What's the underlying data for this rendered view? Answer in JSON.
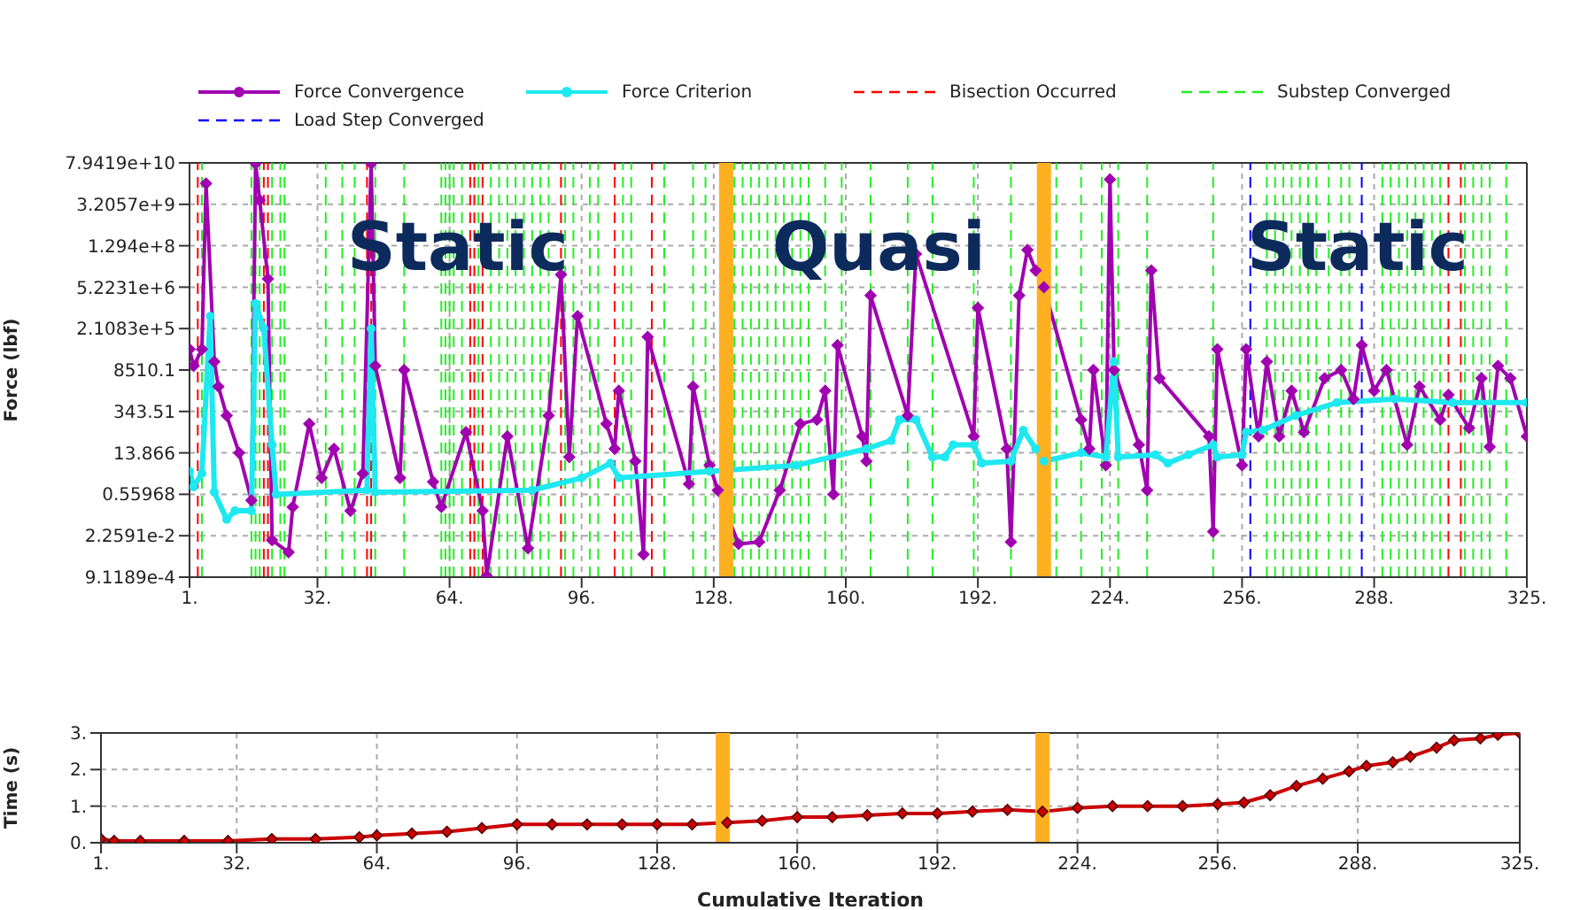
{
  "chart_data": [
    {
      "type": "line",
      "ylabel": "Force (lbf)",
      "log": "y",
      "grid": true,
      "legend": "top",
      "xlim": [
        1,
        325
      ],
      "xticks": [
        {
          "value": 1,
          "label": "1."
        },
        {
          "value": 32,
          "label": "32."
        },
        {
          "value": 64,
          "label": "64."
        },
        {
          "value": 96,
          "label": "96."
        },
        {
          "value": 128,
          "label": "128."
        },
        {
          "value": 160,
          "label": "160."
        },
        {
          "value": 192,
          "label": "192."
        },
        {
          "value": 224,
          "label": "224."
        },
        {
          "value": 256,
          "label": "256."
        },
        {
          "value": 288,
          "label": "288."
        },
        {
          "value": 325,
          "label": "325."
        }
      ],
      "ylim": [
        0.00091189,
        79419000000
      ],
      "yticks": [
        {
          "value": 0.00091189,
          "label": "9.1189e-4"
        },
        {
          "value": 0.022591,
          "label": "2.2591e-2"
        },
        0.55968,
        13.866,
        343.51,
        8510.1,
        {
          "value": 210830,
          "label": "2.1083e+5"
        },
        {
          "value": 5223100,
          "label": "5.2231e+6"
        },
        {
          "value": 129400000,
          "label": "1.294e+8"
        },
        {
          "value": 3205700000,
          "label": "3.2057e+9"
        },
        {
          "value": 79419000000,
          "label": "7.9419e+10"
        }
      ],
      "series": [
        {
          "name": "Force Convergence",
          "color": "#a000b0",
          "marker": "diamond",
          "x": [
            1,
            2,
            4,
            5,
            7,
            8,
            10,
            13,
            16,
            17,
            18,
            20,
            21,
            25,
            26,
            30,
            33,
            36,
            40,
            43,
            45,
            46,
            52,
            53,
            60,
            62,
            68,
            72,
            73,
            78,
            83,
            88,
            91,
            93,
            95,
            102,
            104,
            105,
            109,
            111,
            112,
            122,
            123,
            127,
            129,
            134,
            139,
            144,
            149,
            153,
            155,
            157,
            158,
            164,
            165,
            166,
            175,
            177,
            191,
            192,
            199,
            200,
            202,
            204,
            206,
            208,
            217,
            219,
            220,
            223,
            224,
            225,
            231,
            233,
            234,
            236,
            248,
            249,
            250,
            256,
            257,
            260,
            262,
            265,
            268,
            271,
            276,
            280,
            283,
            285,
            288,
            291,
            296,
            299,
            304,
            306,
            311,
            314,
            316,
            318,
            321,
            325
          ],
          "values": [
            42400,
            11700,
            42400,
            16000000000,
            16200,
            2360,
            250,
            13.9,
            0.35,
            75000000000,
            4400000000,
            9900000,
            0.016,
            0.0063,
            0.21,
            131,
            2.0,
            19,
            0.155,
            2.8,
            75000000000,
            11700,
            2.0,
            8510,
            1.47,
            0.21,
            69,
            0.155,
            0.001,
            50,
            0.0086,
            250,
            13700000,
            10,
            552000,
            131,
            19,
            1710,
            7.3,
            0.0053,
            111000,
            1.25,
            2360,
            5.3,
            0.77,
            0.012,
            0.014,
            0.77,
            131,
            181,
            1710,
            0.56,
            58400,
            50,
            7.3,
            2750000,
            250,
            68000000,
            50,
            1050000,
            19,
            0.014,
            2750000,
            94000000,
            19000000,
            5200000,
            181,
            19,
            8510,
            5.3,
            22000000000,
            8510,
            26,
            0.77,
            19000000,
            4480,
            50,
            0.031,
            42400,
            5.3,
            42400,
            50,
            16200,
            50,
            1710,
            69,
            4480,
            8510,
            900,
            58400,
            1710,
            8510,
            26,
            2360,
            181,
            1240,
            95,
            4480,
            22,
            11700,
            4480,
            50
          ]
        },
        {
          "name": "Force Criterion",
          "color": "#1ee8f0",
          "marker": "circle",
          "x": [
            1,
            2,
            4,
            6,
            7,
            10,
            12,
            16,
            17,
            19,
            21,
            22,
            44,
            45,
            46,
            84,
            96,
            103,
            105,
            127,
            148,
            165,
            171,
            173,
            177,
            181,
            184,
            186,
            191,
            193,
            200,
            203,
            206,
            208,
            217,
            223,
            225,
            226,
            235,
            238,
            243,
            249,
            250,
            256,
            257,
            261,
            269,
            279,
            293,
            307,
            325
          ],
          "values": [
            3.3,
            1.0,
            2.8,
            552000,
            0.66,
            0.08,
            0.155,
            0.155,
            1450000,
            210000,
            26,
            0.56,
            0.77,
            210000,
            0.66,
            0.77,
            2.0,
            6.2,
            2.0,
            3.3,
            5.3,
            19,
            36,
            181,
            181,
            10,
            10,
            26,
            26,
            6.2,
            7.3,
            80,
            19,
            7.3,
            13.9,
            10,
            16200,
            10,
            12,
            6.2,
            12,
            26,
            10,
            12,
            69,
            80,
            250,
            680,
            900,
            680,
            680
          ]
        }
      ],
      "ref_lines": [
        {
          "axis": "x",
          "value": 3,
          "label": "Bisection Occurred",
          "color": "#ff0000",
          "line_style": "dashed"
        },
        {
          "axis": "x",
          "value": 19,
          "color": "#ff0000",
          "line_style": "dashed"
        },
        {
          "axis": "x",
          "value": 20,
          "color": "#ff0000",
          "line_style": "dashed"
        },
        {
          "axis": "x",
          "value": 44,
          "color": "#ff0000",
          "line_style": "dashed"
        },
        {
          "axis": "x",
          "value": 45,
          "color": "#ff0000",
          "line_style": "dashed"
        },
        {
          "axis": "x",
          "value": 69,
          "color": "#ff0000",
          "line_style": "dashed"
        },
        {
          "axis": "x",
          "value": 70,
          "color": "#ff0000",
          "line_style": "dashed"
        },
        {
          "axis": "x",
          "value": 72,
          "color": "#ff0000",
          "line_style": "dashed"
        },
        {
          "axis": "x",
          "value": 91,
          "color": "#ff0000",
          "line_style": "dashed"
        },
        {
          "axis": "x",
          "value": 104,
          "color": "#ff0000",
          "line_style": "dashed"
        },
        {
          "axis": "x",
          "value": 113,
          "color": "#ff0000",
          "line_style": "dashed"
        },
        {
          "axis": "x",
          "value": 306,
          "color": "#ff0000",
          "line_style": "dashed"
        },
        {
          "axis": "x",
          "value": 309,
          "color": "#ff0000",
          "line_style": "dashed"
        },
        {
          "axis": "x",
          "value": 4,
          "label": "Substep Converged",
          "color": "#22ee22",
          "line_style": "dashed"
        },
        {
          "axis": "x",
          "value": 16,
          "color": "#22ee22",
          "line_style": "dashed"
        },
        {
          "axis": "x",
          "value": 17,
          "color": "#22ee22",
          "line_style": "dashed"
        },
        {
          "axis": "x",
          "value": 18,
          "color": "#22ee22",
          "line_style": "dashed"
        },
        {
          "axis": "x",
          "value": 21,
          "color": "#22ee22",
          "line_style": "dashed"
        },
        {
          "axis": "x",
          "value": 23,
          "color": "#22ee22",
          "line_style": "dashed"
        },
        {
          "axis": "x",
          "value": 24,
          "color": "#22ee22",
          "line_style": "dashed"
        },
        {
          "axis": "x",
          "value": 34,
          "color": "#22ee22",
          "line_style": "dashed"
        },
        {
          "axis": "x",
          "value": 38,
          "color": "#22ee22",
          "line_style": "dashed"
        },
        {
          "axis": "x",
          "value": 41,
          "color": "#22ee22",
          "line_style": "dashed"
        },
        {
          "axis": "x",
          "value": 46,
          "color": "#22ee22",
          "line_style": "dashed"
        },
        {
          "axis": "x",
          "value": 53,
          "color": "#22ee22",
          "line_style": "dashed"
        },
        {
          "axis": "x",
          "value": 62,
          "color": "#22ee22",
          "line_style": "dashed"
        },
        {
          "axis": "x",
          "value": 63,
          "color": "#22ee22",
          "line_style": "dashed"
        },
        {
          "axis": "x",
          "value": 64,
          "color": "#22ee22",
          "line_style": "dashed"
        },
        {
          "axis": "x",
          "value": 65,
          "color": "#22ee22",
          "line_style": "dashed"
        },
        {
          "axis": "x",
          "value": 67,
          "color": "#22ee22",
          "line_style": "dashed"
        },
        {
          "axis": "x",
          "value": 71,
          "color": "#22ee22",
          "line_style": "dashed"
        },
        {
          "axis": "x",
          "value": 74,
          "color": "#22ee22",
          "line_style": "dashed"
        },
        {
          "axis": "x",
          "value": 76,
          "color": "#22ee22",
          "line_style": "dashed"
        },
        {
          "axis": "x",
          "value": 78,
          "color": "#22ee22",
          "line_style": "dashed"
        },
        {
          "axis": "x",
          "value": 80,
          "color": "#22ee22",
          "line_style": "dashed"
        },
        {
          "axis": "x",
          "value": 82,
          "color": "#22ee22",
          "line_style": "dashed"
        },
        {
          "axis": "x",
          "value": 84,
          "color": "#22ee22",
          "line_style": "dashed"
        },
        {
          "axis": "x",
          "value": 86,
          "color": "#22ee22",
          "line_style": "dashed"
        },
        {
          "axis": "x",
          "value": 88,
          "color": "#22ee22",
          "line_style": "dashed"
        },
        {
          "axis": "x",
          "value": 92,
          "color": "#22ee22",
          "line_style": "dashed"
        },
        {
          "axis": "x",
          "value": 94,
          "color": "#22ee22",
          "line_style": "dashed"
        },
        {
          "axis": "x",
          "value": 98,
          "color": "#22ee22",
          "line_style": "dashed"
        },
        {
          "axis": "x",
          "value": 100,
          "color": "#22ee22",
          "line_style": "dashed"
        },
        {
          "axis": "x",
          "value": 106,
          "color": "#22ee22",
          "line_style": "dashed"
        },
        {
          "axis": "x",
          "value": 108,
          "color": "#22ee22",
          "line_style": "dashed"
        },
        {
          "axis": "x",
          "value": 116,
          "color": "#22ee22",
          "line_style": "dashed"
        },
        {
          "axis": "x",
          "value": 123,
          "color": "#22ee22",
          "line_style": "dashed"
        },
        {
          "axis": "x",
          "value": 126,
          "color": "#22ee22",
          "line_style": "dashed"
        },
        {
          "axis": "x",
          "value": 133,
          "color": "#22ee22",
          "line_style": "dashed"
        },
        {
          "axis": "x",
          "value": 135,
          "color": "#22ee22",
          "line_style": "dashed"
        },
        {
          "axis": "x",
          "value": 137,
          "color": "#22ee22",
          "line_style": "dashed"
        },
        {
          "axis": "x",
          "value": 139,
          "color": "#22ee22",
          "line_style": "dashed"
        },
        {
          "axis": "x",
          "value": 141,
          "color": "#22ee22",
          "line_style": "dashed"
        },
        {
          "axis": "x",
          "value": 143,
          "color": "#22ee22",
          "line_style": "dashed"
        },
        {
          "axis": "x",
          "value": 145,
          "color": "#22ee22",
          "line_style": "dashed"
        },
        {
          "axis": "x",
          "value": 147,
          "color": "#22ee22",
          "line_style": "dashed"
        },
        {
          "axis": "x",
          "value": 149,
          "color": "#22ee22",
          "line_style": "dashed"
        },
        {
          "axis": "x",
          "value": 151,
          "color": "#22ee22",
          "line_style": "dashed"
        },
        {
          "axis": "x",
          "value": 155,
          "color": "#22ee22",
          "line_style": "dashed"
        },
        {
          "axis": "x",
          "value": 159,
          "color": "#22ee22",
          "line_style": "dashed"
        },
        {
          "axis": "x",
          "value": 166,
          "color": "#22ee22",
          "line_style": "dashed"
        },
        {
          "axis": "x",
          "value": 175,
          "color": "#22ee22",
          "line_style": "dashed"
        },
        {
          "axis": "x",
          "value": 181,
          "color": "#22ee22",
          "line_style": "dashed"
        },
        {
          "axis": "x",
          "value": 191,
          "color": "#22ee22",
          "line_style": "dashed"
        },
        {
          "axis": "x",
          "value": 200,
          "color": "#22ee22",
          "line_style": "dashed"
        },
        {
          "axis": "x",
          "value": 211,
          "color": "#22ee22",
          "line_style": "dashed"
        },
        {
          "axis": "x",
          "value": 217,
          "color": "#22ee22",
          "line_style": "dashed"
        },
        {
          "axis": "x",
          "value": 222,
          "color": "#22ee22",
          "line_style": "dashed"
        },
        {
          "axis": "x",
          "value": 226,
          "color": "#22ee22",
          "line_style": "dashed"
        },
        {
          "axis": "x",
          "value": 233,
          "color": "#22ee22",
          "line_style": "dashed"
        },
        {
          "axis": "x",
          "value": 249,
          "color": "#22ee22",
          "line_style": "dashed"
        },
        {
          "axis": "x",
          "value": 262,
          "color": "#22ee22",
          "line_style": "dashed"
        },
        {
          "axis": "x",
          "value": 264,
          "color": "#22ee22",
          "line_style": "dashed"
        },
        {
          "axis": "x",
          "value": 266,
          "color": "#22ee22",
          "line_style": "dashed"
        },
        {
          "axis": "x",
          "value": 268,
          "color": "#22ee22",
          "line_style": "dashed"
        },
        {
          "axis": "x",
          "value": 270,
          "color": "#22ee22",
          "line_style": "dashed"
        },
        {
          "axis": "x",
          "value": 272,
          "color": "#22ee22",
          "line_style": "dashed"
        },
        {
          "axis": "x",
          "value": 274,
          "color": "#22ee22",
          "line_style": "dashed"
        },
        {
          "axis": "x",
          "value": 277,
          "color": "#22ee22",
          "line_style": "dashed"
        },
        {
          "axis": "x",
          "value": 280,
          "color": "#22ee22",
          "line_style": "dashed"
        },
        {
          "axis": "x",
          "value": 282,
          "color": "#22ee22",
          "line_style": "dashed"
        },
        {
          "axis": "x",
          "value": 290,
          "color": "#22ee22",
          "line_style": "dashed"
        },
        {
          "axis": "x",
          "value": 292,
          "color": "#22ee22",
          "line_style": "dashed"
        },
        {
          "axis": "x",
          "value": 294,
          "color": "#22ee22",
          "line_style": "dashed"
        },
        {
          "axis": "x",
          "value": 296,
          "color": "#22ee22",
          "line_style": "dashed"
        },
        {
          "axis": "x",
          "value": 298,
          "color": "#22ee22",
          "line_style": "dashed"
        },
        {
          "axis": "x",
          "value": 300,
          "color": "#22ee22",
          "line_style": "dashed"
        },
        {
          "axis": "x",
          "value": 302,
          "color": "#22ee22",
          "line_style": "dashed"
        },
        {
          "axis": "x",
          "value": 304,
          "color": "#22ee22",
          "line_style": "dashed"
        },
        {
          "axis": "x",
          "value": 310,
          "color": "#22ee22",
          "line_style": "dashed"
        },
        {
          "axis": "x",
          "value": 312,
          "color": "#22ee22",
          "line_style": "dashed"
        },
        {
          "axis": "x",
          "value": 314,
          "color": "#22ee22",
          "line_style": "dashed"
        },
        {
          "axis": "x",
          "value": 316,
          "color": "#22ee22",
          "line_style": "dashed"
        },
        {
          "axis": "x",
          "value": 320,
          "color": "#22ee22",
          "line_style": "dashed"
        },
        {
          "axis": "x",
          "value": 258,
          "label": "Load Step Converged",
          "color": "#0000ff",
          "line_style": "dashed"
        },
        {
          "axis": "x",
          "value": 285,
          "color": "#0000ff",
          "line_style": "dashed"
        },
        {
          "axis": "x",
          "value": 131,
          "color": "#ffb020",
          "line_style": "solid"
        },
        {
          "axis": "x",
          "value": 208,
          "color": "#ffb020",
          "line_style": "solid"
        }
      ],
      "annotations": [
        {
          "text": "Static",
          "x": 66,
          "y": 129400000
        },
        {
          "text": "Quasi",
          "x": 168,
          "y": 129400000
        },
        {
          "text": "Static",
          "x": 284,
          "y": 129400000
        }
      ]
    },
    {
      "type": "line",
      "xlabel": "Cumulative Iteration",
      "ylabel": "Time (s)",
      "grid": true,
      "xlim": [
        1,
        325
      ],
      "xticks": [
        {
          "value": 1,
          "label": "1."
        },
        {
          "value": 32,
          "label": "32."
        },
        {
          "value": 64,
          "label": "64."
        },
        {
          "value": 96,
          "label": "96."
        },
        {
          "value": 128,
          "label": "128."
        },
        {
          "value": 160,
          "label": "160."
        },
        {
          "value": 192,
          "label": "192."
        },
        {
          "value": 224,
          "label": "224."
        },
        {
          "value": 256,
          "label": "256."
        },
        {
          "value": 288,
          "label": "288."
        },
        {
          "value": 325,
          "label": "325."
        }
      ],
      "ylim": [
        0,
        3
      ],
      "yticks": [
        {
          "value": 0,
          "label": "0."
        },
        {
          "value": 1,
          "label": "1."
        },
        {
          "value": 2,
          "label": "2."
        },
        {
          "value": 3,
          "label": "3."
        }
      ],
      "series": [
        {
          "color": "#cc0000",
          "marker": "diamond",
          "x": [
            1,
            4,
            10,
            20,
            30,
            40,
            50,
            60,
            64,
            72,
            80,
            88,
            96,
            104,
            112,
            120,
            128,
            136,
            144,
            152,
            160,
            168,
            176,
            184,
            192,
            200,
            208,
            216,
            224,
            232,
            240,
            248,
            256,
            262,
            268,
            274,
            280,
            286,
            290,
            296,
            300,
            306,
            310,
            316,
            320,
            325
          ],
          "values": [
            0.1,
            0.05,
            0.05,
            0.05,
            0.05,
            0.1,
            0.1,
            0.15,
            0.2,
            0.25,
            0.3,
            0.4,
            0.5,
            0.5,
            0.5,
            0.5,
            0.5,
            0.5,
            0.55,
            0.6,
            0.7,
            0.7,
            0.75,
            0.8,
            0.8,
            0.85,
            0.9,
            0.85,
            0.95,
            1.0,
            1.0,
            1.0,
            1.05,
            1.1,
            1.3,
            1.55,
            1.75,
            1.95,
            2.1,
            2.2,
            2.35,
            2.6,
            2.8,
            2.85,
            2.95,
            3.0
          ]
        }
      ],
      "ref_lines": [
        {
          "axis": "x",
          "value": 143,
          "color": "#ffb020",
          "line_style": "solid"
        },
        {
          "axis": "x",
          "value": 216,
          "color": "#ffb020",
          "line_style": "solid"
        }
      ]
    }
  ]
}
